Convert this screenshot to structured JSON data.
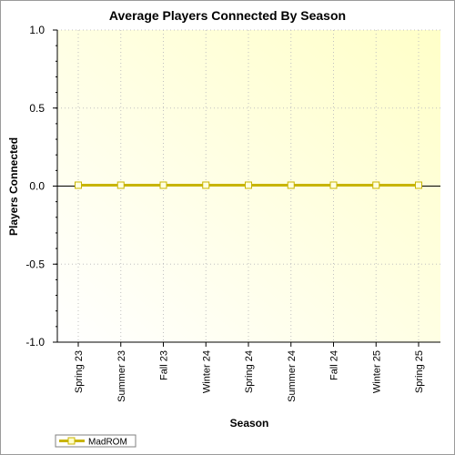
{
  "chart_data": {
    "type": "line",
    "title": "Average Players Connected By Season",
    "xlabel": "Season",
    "ylabel": "Players Connected",
    "categories": [
      "Spring 23",
      "Summer 23",
      "Fall 23",
      "Winter 24",
      "Spring 24",
      "Summer 24",
      "Fall 24",
      "Winter 25",
      "Spring 25"
    ],
    "series": [
      {
        "name": "MadROM",
        "values": [
          0,
          0,
          0,
          0,
          0,
          0,
          0,
          0,
          0
        ],
        "color": "#c8b400"
      }
    ],
    "ylim": [
      -1.0,
      1.0
    ],
    "yticks": [
      "1.0",
      "0.5",
      "0.0",
      "-0.5",
      "-1.0"
    ],
    "grid": true,
    "legend": "bottom-left",
    "background_gradient": [
      "#ffffe0",
      "#ffffff"
    ]
  }
}
